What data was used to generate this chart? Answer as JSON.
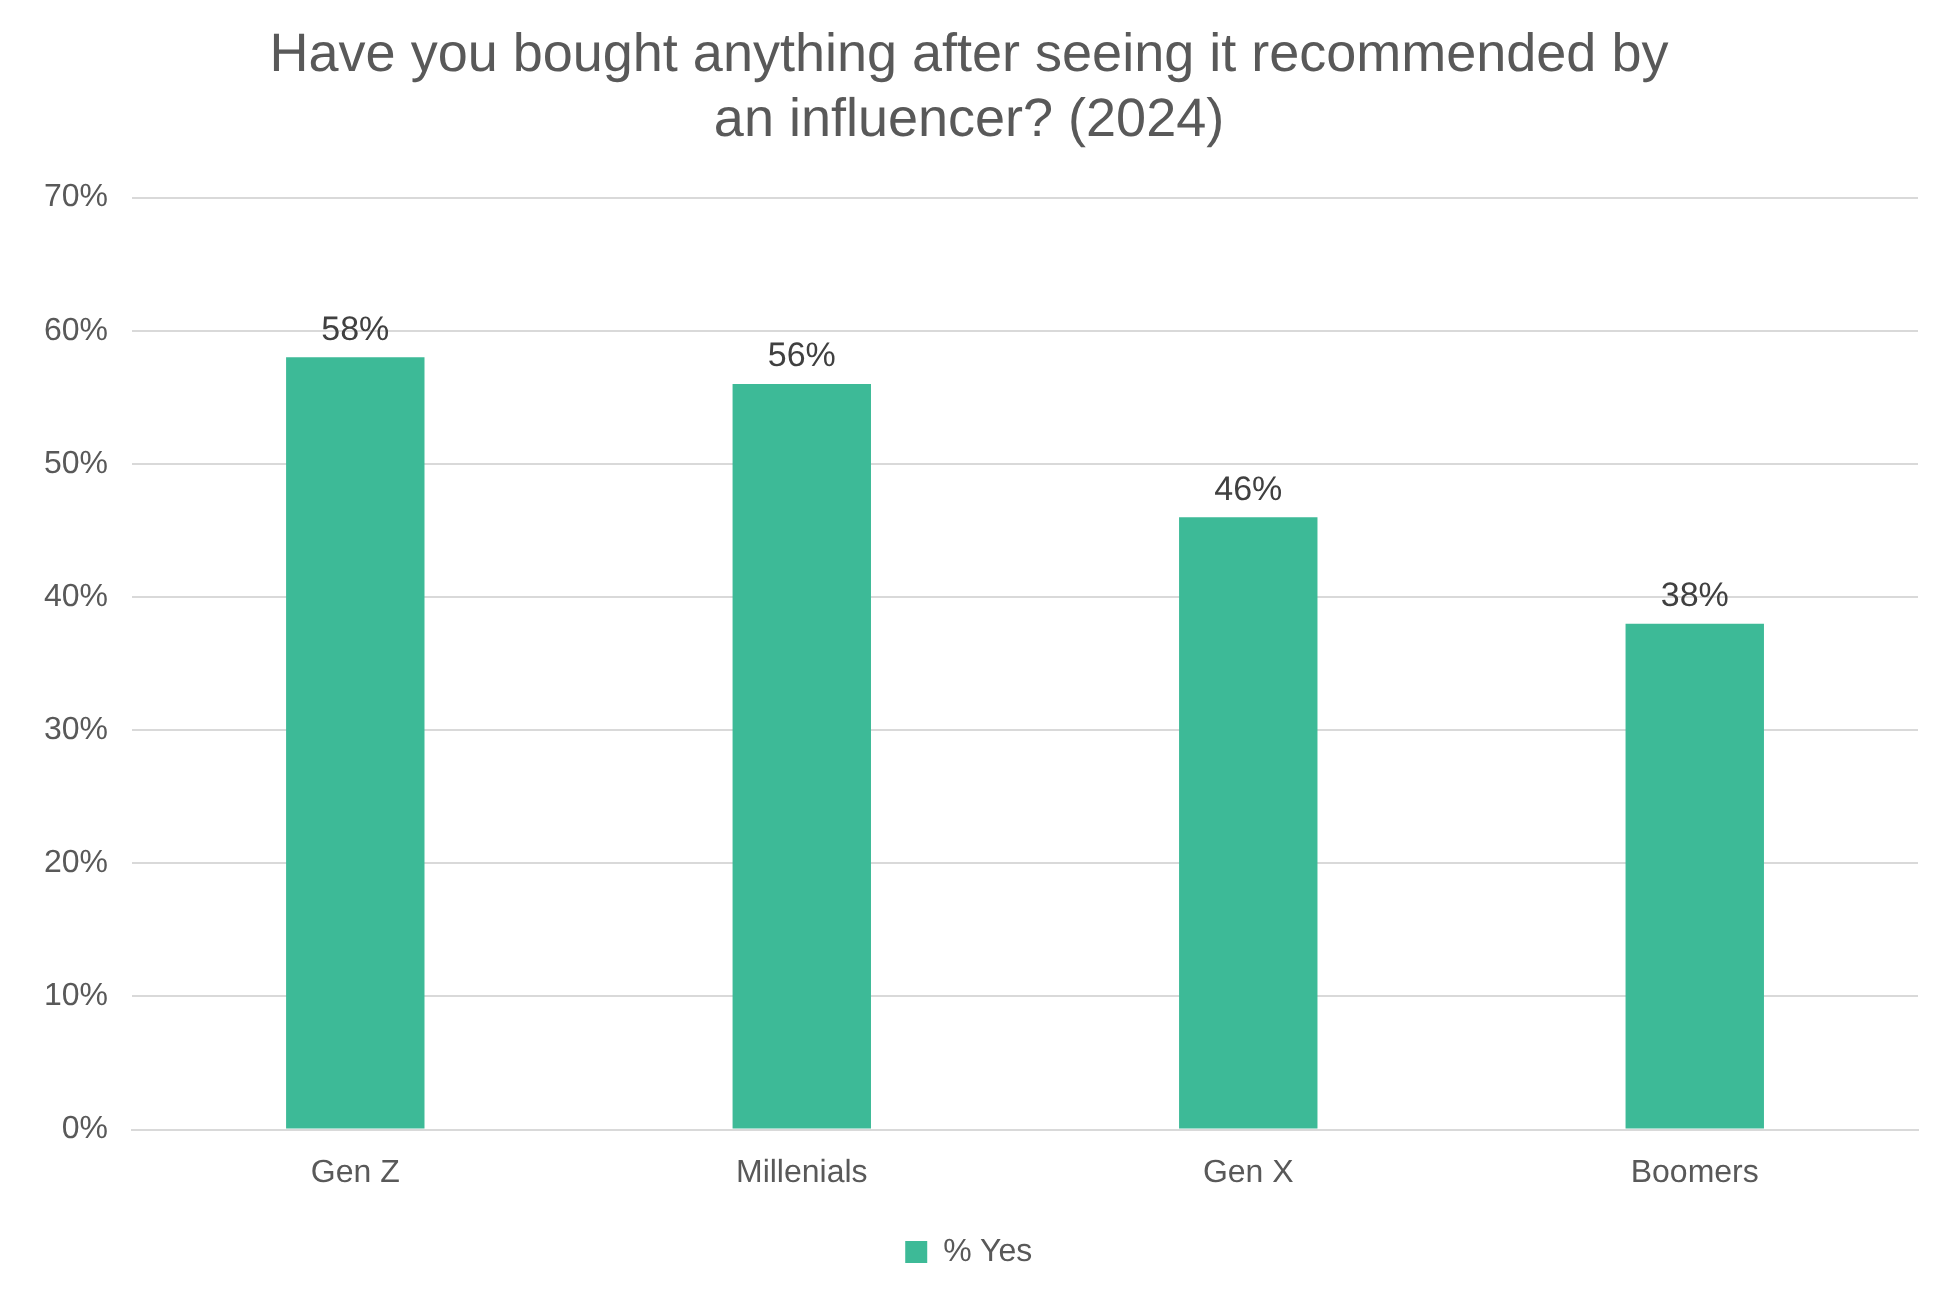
{
  "chart_data": {
    "type": "bar",
    "title": "Have you bought anything after seeing it recommended by an influencer? (2024)",
    "categories": [
      "Gen Z",
      "Millenials",
      "Gen X",
      "Boomers"
    ],
    "series": [
      {
        "name": "% Yes",
        "color": "#3dba97",
        "values": [
          58,
          56,
          46,
          38
        ],
        "value_labels": [
          "58%",
          "56%",
          "46%",
          "38%"
        ]
      }
    ],
    "ylim": [
      0,
      70
    ],
    "yticks": [
      {
        "value": 0,
        "label": "0%"
      },
      {
        "value": 10,
        "label": "10%"
      },
      {
        "value": 20,
        "label": "20%"
      },
      {
        "value": 30,
        "label": "30%"
      },
      {
        "value": 40,
        "label": "40%"
      },
      {
        "value": 50,
        "label": "50%"
      },
      {
        "value": 60,
        "label": "60%"
      },
      {
        "value": 70,
        "label": "70%"
      }
    ],
    "grid": "y",
    "legend": "bottom"
  }
}
